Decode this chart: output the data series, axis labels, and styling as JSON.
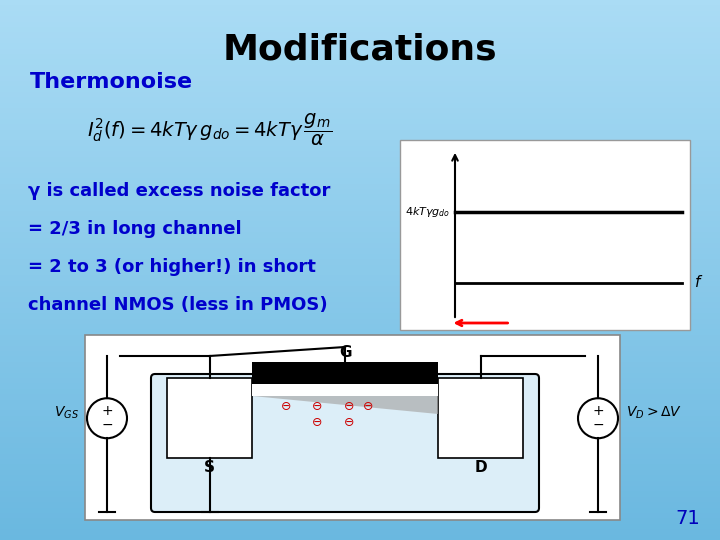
{
  "title": "Modifications",
  "title_fontsize": 26,
  "title_color": "#000000",
  "bg_color": "#87CEEB",
  "section_label": "Thermonoise",
  "section_label_color": "#0000cc",
  "section_label_fontsize": 16,
  "body_text_lines": [
    "γ is called excess noise factor",
    "= 2/3 in long channel",
    "= 2 to 3 (or higher!) in short",
    "channel NMOS (less in PMOS)"
  ],
  "body_text_color": "#0000cc",
  "body_fontsize": 13,
  "formula_color": "#000000",
  "page_number": "71",
  "page_number_color": "#0000bb",
  "page_number_fontsize": 14,
  "plot_box_bg": "#ffffff",
  "plot_line_color": "#000000",
  "plot_label_color": "#000000",
  "mosfet_box_bg": "#ffffff"
}
